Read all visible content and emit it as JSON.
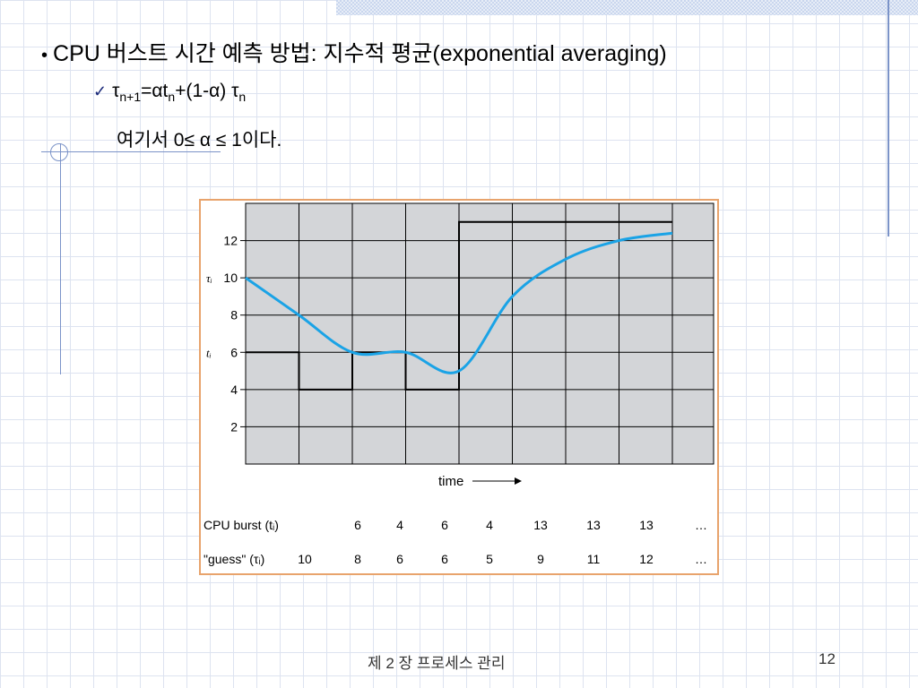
{
  "slide": {
    "bullet": "CPU 버스트 시간 예측 방법: 지수적 평균(exponential averaging)",
    "formula": {
      "check": "✓",
      "tau": "τ",
      "sub1": "n+1",
      "eq": "=αt",
      "sub2": "n",
      "rest": "+(1-α) τ",
      "sub3": "n"
    },
    "where": "여기서 0≤ α ≤ 1이다."
  },
  "footer": {
    "chapter": "제 2 장 프로세스 관리",
    "page": "12"
  },
  "colors": {
    "curve": "#1aa3e6",
    "plot_bg": "#d3d5d8",
    "frame": "#e8a36c"
  },
  "chart_data": {
    "type": "line",
    "xlabel": "time",
    "ylim": [
      0,
      14
    ],
    "yticks": [
      2,
      4,
      6,
      8,
      10,
      12
    ],
    "y_axis_markers": [
      {
        "label": "τᵢ",
        "at": 10
      },
      {
        "label": "tᵢ",
        "at": 6
      }
    ],
    "grid": true,
    "series": [
      {
        "kind": "step",
        "x": [
          0,
          1,
          2,
          3,
          4,
          5,
          6,
          7,
          8
        ],
        "y": [
          6,
          4,
          6,
          4,
          13,
          13,
          13,
          13,
          13
        ]
      },
      {
        "kind": "smooth",
        "x": [
          0,
          1,
          2,
          3,
          4,
          5,
          6,
          7,
          8
        ],
        "y": [
          10,
          8,
          6,
          6,
          5,
          9,
          11,
          12,
          12.4
        ]
      }
    ],
    "table": {
      "rows": [
        {
          "label": "CPU burst (tᵢ)",
          "values": [
            "",
            "6",
            "4",
            "6",
            "4",
            "13",
            "13",
            "13",
            "…"
          ]
        },
        {
          "label": "\"guess\" (τᵢ)",
          "values": [
            "10",
            "8",
            "6",
            "6",
            "5",
            "9",
            "11",
            "12",
            "…"
          ]
        }
      ]
    }
  }
}
